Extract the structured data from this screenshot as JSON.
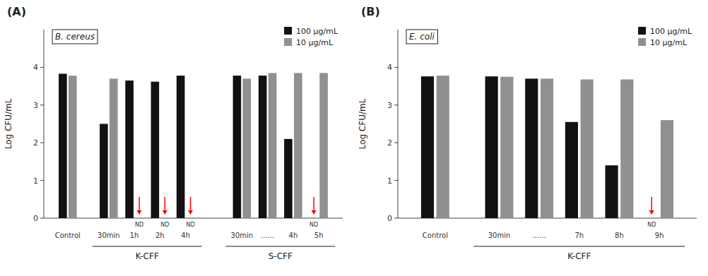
{
  "chart_data": [
    {
      "type": "bar",
      "title": "(A)",
      "y_label": "Log CFU/mL",
      "categories": [
        "Control",
        "30min",
        "1h",
        "2h",
        "4h",
        "30min",
        "......",
        "4h",
        "5h"
      ],
      "series": [
        {
          "name": "100 μg/mL",
          "color": "#111111",
          "values": [
            3.83,
            2.5,
            3.65,
            3.62,
            3.78,
            3.78,
            3.78,
            2.1,
            0.0
          ]
        },
        {
          "name": "10 μg/mL",
          "color": "#909090",
          "values": [
            3.78,
            3.7,
            0.0,
            0.0,
            0.0,
            3.7,
            3.85,
            3.85,
            3.85
          ]
        }
      ],
      "sections": [
        {
          "label": "K-CFF",
          "start_index": 1,
          "end_index": 4
        },
        {
          "label": "S-CFF",
          "start_index": 5,
          "end_index": 8
        }
      ],
      "annotations": [
        {
          "text": "B. cereus"
        },
        {
          "text": "ND",
          "series": 1,
          "index": 2
        },
        {
          "text": "ND",
          "series": 1,
          "index": 3
        },
        {
          "text": "ND",
          "series": 1,
          "index": 4
        },
        {
          "text": "ND",
          "series": 0,
          "index": 8
        }
      ],
      "ylim": [
        0,
        5
      ],
      "yticks": [
        0,
        1,
        2,
        3,
        4
      ],
      "grid": false,
      "legend": "upper right"
    },
    {
      "type": "bar",
      "title": "(B)",
      "y_label": "Log CFU/mL",
      "categories": [
        "Control",
        "30min",
        "......",
        "7h",
        "8h",
        "9h"
      ],
      "series": [
        {
          "name": "100 μg/mL",
          "color": "#111111",
          "values": [
            3.76,
            3.76,
            3.7,
            2.55,
            1.4,
            0.0
          ]
        },
        {
          "name": "10 μg/mL",
          "color": "#909090",
          "values": [
            3.78,
            3.75,
            3.7,
            3.68,
            3.68,
            2.6
          ]
        }
      ],
      "sections": [
        {
          "label": "K-CFF",
          "start_index": 1,
          "end_index": 5
        }
      ],
      "annotations": [
        {
          "text": "E. coli"
        },
        {
          "text": "ND",
          "series": 0,
          "index": 5
        }
      ],
      "ylim": [
        0,
        5
      ],
      "yticks": [
        0,
        1,
        2,
        3,
        4
      ],
      "grid": false,
      "legend": "upper right"
    }
  ]
}
